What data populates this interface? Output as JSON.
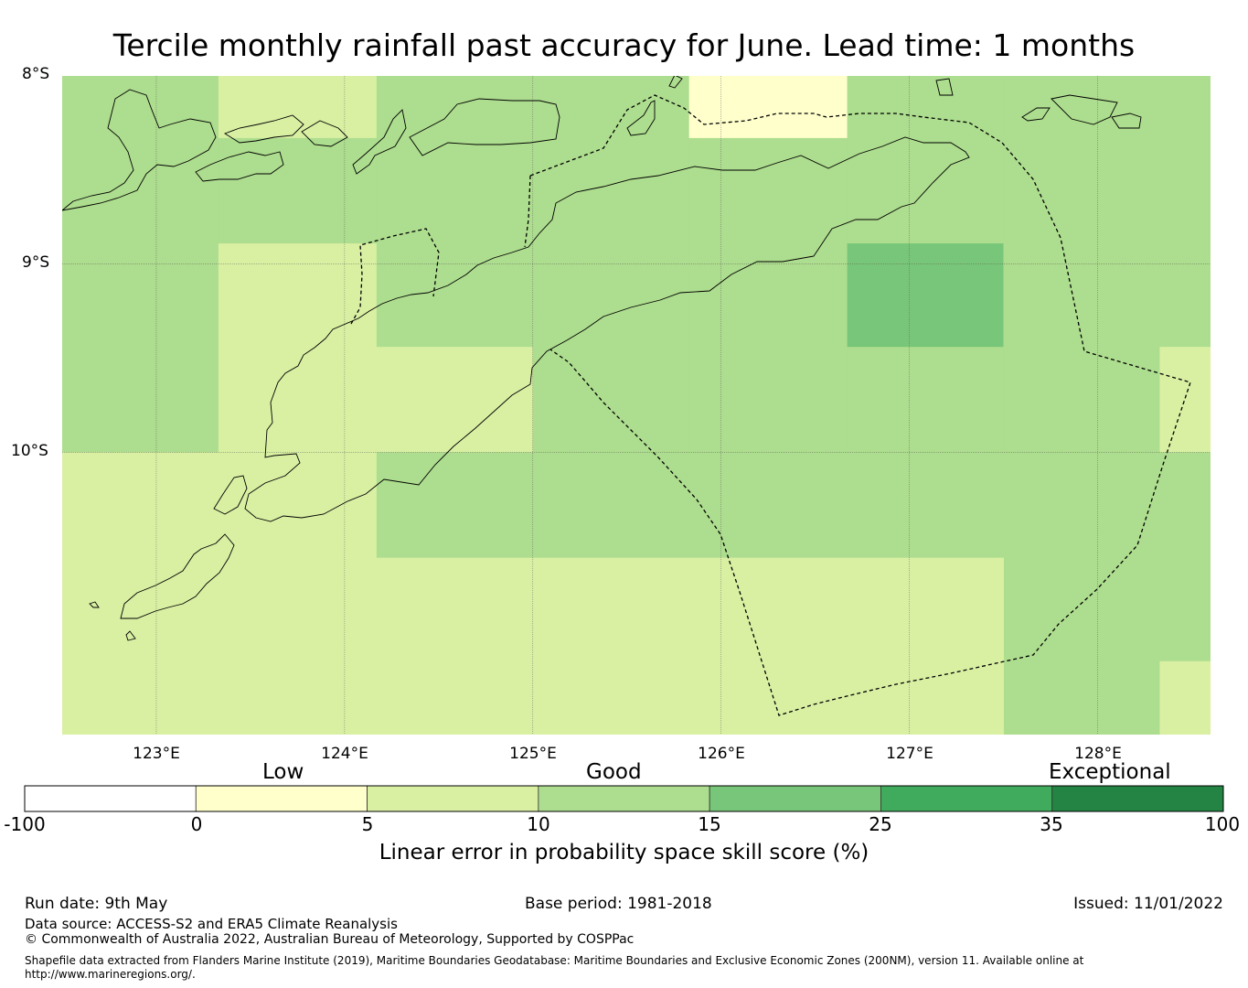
{
  "title": "Tercile monthly rainfall past accuracy for June. Lead time: 1 months",
  "map": {
    "lat_labels": [
      "8°S",
      "9°S",
      "10°S"
    ],
    "lon_labels": [
      "123°E",
      "124°E",
      "125°E",
      "126°E",
      "127°E",
      "128°E"
    ],
    "extent": {
      "lon_min": 122.5,
      "lon_max": 128.6,
      "lat_min": -11.5,
      "lat_max": -8.0
    },
    "grid_cells": [
      {
        "lon0": 122.5,
        "lon1": 123.33,
        "lat0": -8.0,
        "lat1": -10.0,
        "cls": 3
      },
      {
        "lon0": 123.33,
        "lon1": 124.17,
        "lat0": -8.0,
        "lat1": -8.33,
        "cls": 2
      },
      {
        "lon0": 123.33,
        "lon1": 124.17,
        "lat0": -8.33,
        "lat1": -8.89,
        "cls": 3
      },
      {
        "lon0": 123.33,
        "lon1": 124.17,
        "lat0": -8.89,
        "lat1": -10.0,
        "cls": 2
      },
      {
        "lon0": 124.17,
        "lon1": 125.83,
        "lat0": -8.0,
        "lat1": -9.44,
        "cls": 3
      },
      {
        "lon0": 124.17,
        "lon1": 125.0,
        "lat0": -9.44,
        "lat1": -10.0,
        "cls": 2
      },
      {
        "lon0": 125.0,
        "lon1": 125.83,
        "lat0": -9.44,
        "lat1": -10.0,
        "cls": 3
      },
      {
        "lon0": 125.83,
        "lon1": 126.67,
        "lat0": -8.0,
        "lat1": -8.33,
        "cls": 1
      },
      {
        "lon0": 125.83,
        "lon1": 126.67,
        "lat0": -8.33,
        "lat1": -10.0,
        "cls": 3
      },
      {
        "lon0": 126.67,
        "lon1": 127.5,
        "lat0": -8.0,
        "lat1": -8.89,
        "cls": 3
      },
      {
        "lon0": 126.67,
        "lon1": 127.5,
        "lat0": -8.89,
        "lat1": -9.44,
        "cls": 4
      },
      {
        "lon0": 126.67,
        "lon1": 127.5,
        "lat0": -9.44,
        "lat1": -10.0,
        "cls": 3
      },
      {
        "lon0": 127.5,
        "lon1": 128.33,
        "lat0": -8.0,
        "lat1": -11.5,
        "cls": 3
      },
      {
        "lon0": 128.33,
        "lon1": 128.6,
        "lat0": -8.0,
        "lat1": -9.44,
        "cls": 3
      },
      {
        "lon0": 128.33,
        "lon1": 128.6,
        "lat0": -9.44,
        "lat1": -10.0,
        "cls": 2
      },
      {
        "lon0": 128.33,
        "lon1": 128.6,
        "lat0": -10.0,
        "lat1": -11.11,
        "cls": 3
      },
      {
        "lon0": 128.33,
        "lon1": 128.6,
        "lat0": -11.11,
        "lat1": -11.5,
        "cls": 2
      },
      {
        "lon0": 122.5,
        "lon1": 124.17,
        "lat0": -10.0,
        "lat1": -11.5,
        "cls": 2
      },
      {
        "lon0": 124.17,
        "lon1": 127.5,
        "lat0": -10.0,
        "lat1": -10.56,
        "cls": 3
      },
      {
        "lon0": 124.17,
        "lon1": 127.5,
        "lat0": -10.56,
        "lat1": -11.5,
        "cls": 2
      }
    ]
  },
  "colorbar": {
    "categories": [
      "Low",
      "Good",
      "Exceptional"
    ],
    "ticks": [
      "-100",
      "0",
      "5",
      "10",
      "15",
      "25",
      "35",
      "100"
    ],
    "colors": [
      "#ffffff",
      "#ffffcc",
      "#d9f0a3",
      "#addd8e",
      "#78c679",
      "#41ab5d",
      "#238443"
    ],
    "title": "Linear error in probability space skill score (%)"
  },
  "footer": {
    "run_date": "Run date: 9th May",
    "base_period": "Base period: 1981-2018",
    "issued": "Issued: 11/01/2022",
    "data_source": "Data source: ACCESS-S2 and ERA5 Climate Reanalysis",
    "copyright": "© Commonwealth of Australia 2022, Australian Bureau of Meteorology, Supported by COSPPac",
    "shapefile_note": "Shapefile data extracted from Flanders Marine Institute (2019), Maritime Boundaries Geodatabase: Maritime Boundaries and Exclusive Economic Zones (200NM), version 11. Available online at http://www.marineregions.org/."
  }
}
